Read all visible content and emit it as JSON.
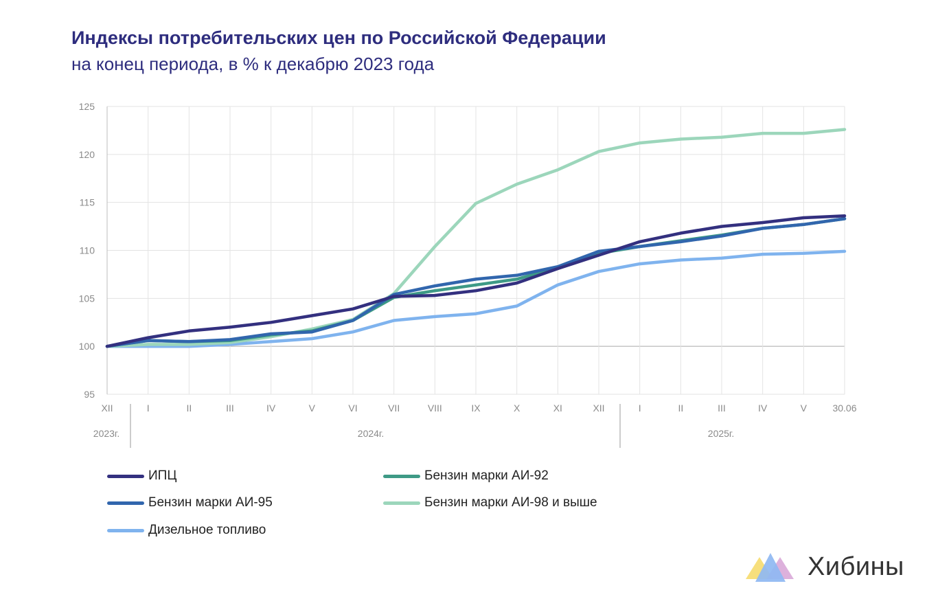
{
  "header": {
    "title": "Индексы потребительских цен по Российской Федерации",
    "subtitle": "на конец периода, в % к декабрю 2023 года"
  },
  "chart_data": {
    "type": "line",
    "title": "Индексы потребительских цен по Российской Федерации",
    "subtitle": "на конец периода, в % к декабрю 2023 года",
    "x": [
      "XII",
      "I",
      "II",
      "III",
      "IV",
      "V",
      "VI",
      "VII",
      "VIII",
      "IX",
      "X",
      "XI",
      "XII",
      "I",
      "II",
      "III",
      "IV",
      "V",
      "30.06"
    ],
    "year_groups": [
      {
        "label": "2023г."
      },
      {
        "label": "2024г."
      },
      {
        "label": "2025г."
      }
    ],
    "ylim": [
      95,
      125
    ],
    "yticks": [
      95,
      100,
      105,
      110,
      115,
      120,
      125
    ],
    "grid": true,
    "legend_position": "bottom",
    "series": [
      {
        "name": "ИПЦ",
        "color": "#33307f",
        "values": [
          100.0,
          100.9,
          101.6,
          102.0,
          102.5,
          103.2,
          103.9,
          105.2,
          105.3,
          105.8,
          106.6,
          108.1,
          109.5,
          110.9,
          111.8,
          112.5,
          112.9,
          113.4,
          113.6
        ]
      },
      {
        "name": "Бензин марки АИ-92",
        "color": "#3e9a86",
        "values": [
          100.0,
          100.6,
          100.5,
          100.6,
          101.2,
          101.6,
          102.7,
          105.1,
          105.8,
          106.4,
          107.0,
          108.2,
          109.7,
          110.4,
          111.0,
          111.6,
          112.3,
          112.7,
          113.3
        ]
      },
      {
        "name": "Бензин марки АИ-95",
        "color": "#3166ad",
        "values": [
          100.0,
          100.6,
          100.5,
          100.7,
          101.3,
          101.5,
          102.7,
          105.4,
          106.3,
          107.0,
          107.4,
          108.3,
          109.9,
          110.4,
          110.9,
          111.5,
          112.3,
          112.7,
          113.3
        ]
      },
      {
        "name": "Бензин марки АИ-98 и выше",
        "color": "#9cd6bb",
        "values": [
          100.0,
          100.2,
          100.2,
          100.4,
          101.0,
          101.8,
          102.8,
          105.5,
          110.4,
          114.9,
          116.9,
          118.4,
          120.3,
          121.2,
          121.6,
          121.8,
          122.2,
          122.2,
          122.6
        ]
      },
      {
        "name": "Дизельное топливо",
        "color": "#7fb3ee",
        "values": [
          100.0,
          100.0,
          100.0,
          100.2,
          100.5,
          100.8,
          101.5,
          102.7,
          103.1,
          103.4,
          104.2,
          106.4,
          107.8,
          108.6,
          109.0,
          109.2,
          109.6,
          109.7,
          109.9
        ]
      }
    ]
  },
  "legend": {
    "items": [
      {
        "label": "ИПЦ",
        "color": "#33307f"
      },
      {
        "label": "Бензин марки АИ-92",
        "color": "#3e9a86"
      },
      {
        "label": "Бензин марки АИ-95",
        "color": "#3166ad"
      },
      {
        "label": "Бензин марки АИ-98 и выше",
        "color": "#9cd6bb"
      },
      {
        "label": "Дизельное топливо",
        "color": "#7fb3ee"
      }
    ]
  },
  "brand": {
    "name": "Хибины",
    "logo_icon": "mountains-icon",
    "logo_colors": [
      "#f6dc6e",
      "#8fb8f2",
      "#d9a9d8"
    ]
  }
}
